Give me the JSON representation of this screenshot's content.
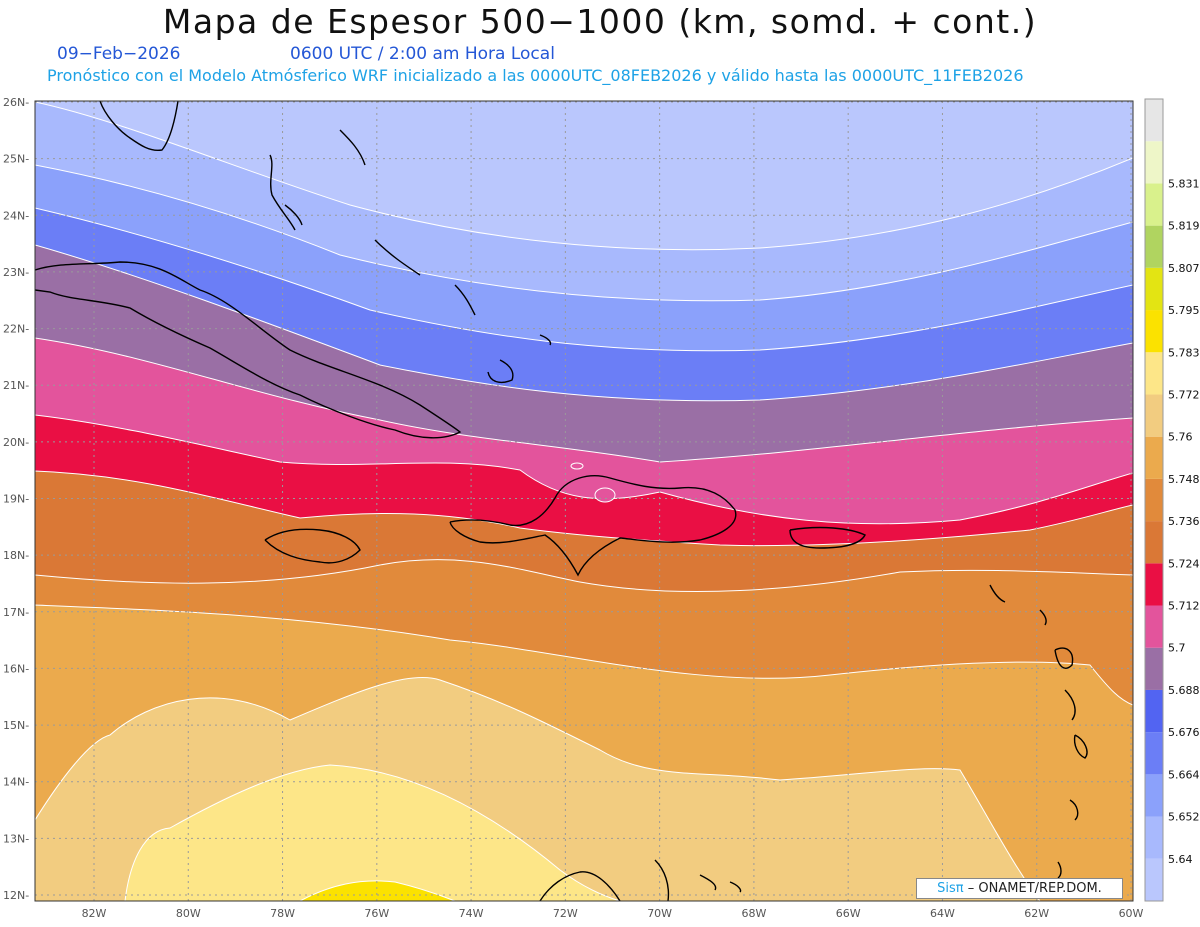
{
  "header": {
    "title": "Mapa de Espesor 500−1000 (km, somd. + cont.)",
    "date": "09−Feb−2026",
    "time": "0600 UTC / 2:00 am Hora Local",
    "description": "Pronóstico con el Modelo Atmósferico WRF inicializado a las 0000UTC_08FEB2026 y válido hasta las  0000UTC_11FEB2026"
  },
  "map": {
    "lat_labels": [
      "26N",
      "25N",
      "24N",
      "23N",
      "22N",
      "21N",
      "20N",
      "19N",
      "18N",
      "17N",
      "16N",
      "15N",
      "14N",
      "13N",
      "12N"
    ],
    "lon_labels": [
      "82W",
      "80W",
      "78W",
      "76W",
      "74W",
      "72W",
      "70W",
      "68W",
      "66W",
      "64W",
      "62W",
      "60W"
    ],
    "grid": true,
    "coastline_color": "#000000",
    "contour_line_color": "#ffffff"
  },
  "legend": {
    "values": [
      "5.64",
      "5.652",
      "5.664",
      "5.676",
      "5.688",
      "5.7",
      "5.712",
      "5.724",
      "5.736",
      "5.748",
      "5.76",
      "5.772",
      "5.783",
      "5.795",
      "5.807",
      "5.819",
      "5.831"
    ],
    "colors": [
      "#bac7fd",
      "#a8b9fd",
      "#8ba1fb",
      "#6b7ef6",
      "#5264f2",
      "#9a6fa5",
      "#e3549c",
      "#ea0f44",
      "#da7836",
      "#e18a3b",
      "#ebaa4d",
      "#f2cc80",
      "#fde688",
      "#fbe200",
      "#e3e413",
      "#b0d460",
      "#d9f18c",
      "#eef6c8",
      "#e6e6e6"
    ]
  },
  "footer": {
    "brand": "Sisπ",
    "org": "– ONAMET/REP.DOM."
  }
}
